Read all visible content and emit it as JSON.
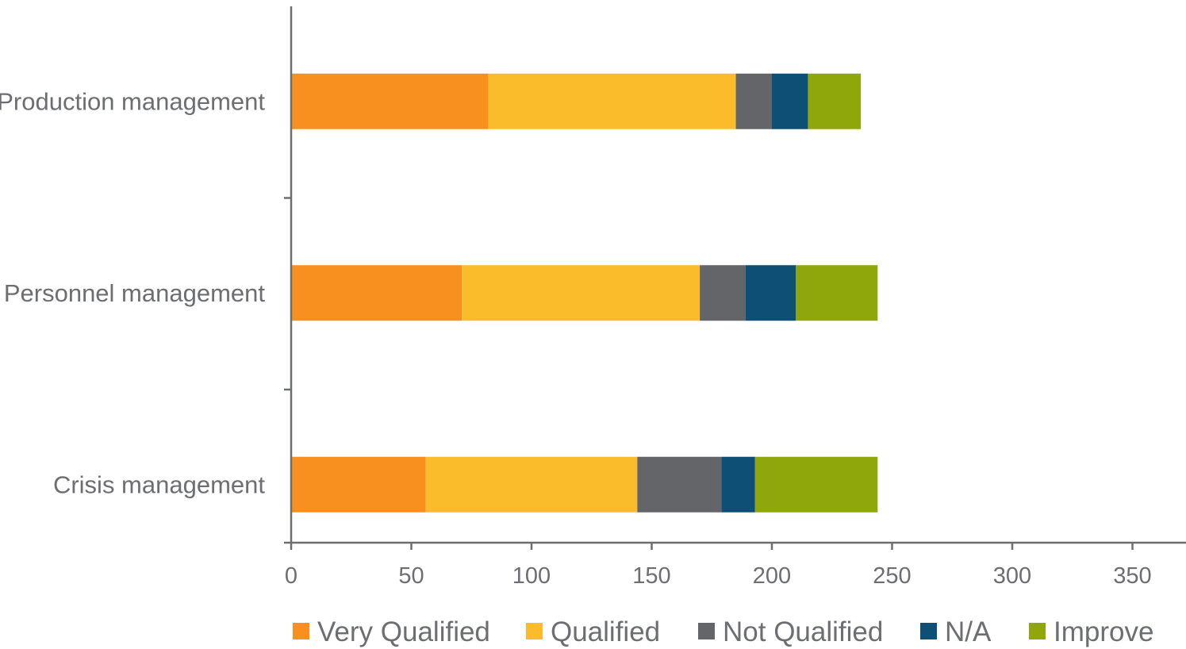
{
  "chart_data": {
    "type": "bar",
    "orientation": "horizontal",
    "stacked": true,
    "categories": [
      "Production management",
      "Personnel management",
      "Crisis management"
    ],
    "series": [
      {
        "name": "Very Qualified",
        "color": "#f7901e",
        "values": [
          82,
          71,
          56
        ]
      },
      {
        "name": "Qualified",
        "color": "#fbbc2b",
        "values": [
          103,
          99,
          88
        ]
      },
      {
        "name": "Not Qualified",
        "color": "#636569",
        "values": [
          15,
          19,
          35
        ]
      },
      {
        "name": "N/A",
        "color": "#0e4f75",
        "values": [
          15,
          21,
          14
        ]
      },
      {
        "name": "Improve",
        "color": "#8fa70a",
        "values": [
          22,
          34,
          51
        ]
      }
    ],
    "xlim": [
      0,
      370
    ],
    "xticks": [
      "0",
      "50",
      "100",
      "150",
      "200",
      "250",
      "300",
      "350"
    ],
    "title": "",
    "xlabel": "",
    "ylabel": "",
    "grid": false,
    "legend": "bottom"
  }
}
